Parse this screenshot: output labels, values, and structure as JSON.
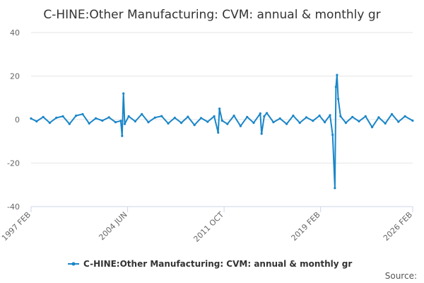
{
  "chart_data": {
    "type": "line",
    "title": "C-HINE:Other Manufacturing: CVM: annual & monthly gr",
    "xlabel": "",
    "ylabel": "",
    "ylim": [
      -40,
      40
    ],
    "yticks": [
      40,
      20,
      0,
      -20,
      -40
    ],
    "xlim": [
      1997.083,
      2026.083
    ],
    "xticks": [
      {
        "label": "1997 FEB",
        "value": 1997.083
      },
      {
        "label": "2004 JUN",
        "value": 2004.417
      },
      {
        "label": "2011 OCT",
        "value": 2011.75
      },
      {
        "label": "2019 FEB",
        "value": 2019.083
      },
      {
        "label": "2026 FEB",
        "value": 2026.083
      }
    ],
    "color": "#1a86c8",
    "legend": "C-HINE:Other Manufacturing: CVM: annual & monthly gr",
    "series": [
      {
        "name": "C-HINE:Other Manufacturing: CVM: annual & monthly gr",
        "points": [
          [
            1997.08,
            0.5
          ],
          [
            1997.5,
            -0.8
          ],
          [
            1998.0,
            1.2
          ],
          [
            1998.5,
            -1.5
          ],
          [
            1999.0,
            0.8
          ],
          [
            1999.5,
            1.5
          ],
          [
            2000.0,
            -2.0
          ],
          [
            2000.5,
            1.8
          ],
          [
            2001.0,
            2.5
          ],
          [
            2001.5,
            -1.8
          ],
          [
            2002.0,
            0.6
          ],
          [
            2002.5,
            -0.5
          ],
          [
            2003.0,
            1.0
          ],
          [
            2003.5,
            -1.2
          ],
          [
            2003.9,
            -0.6
          ],
          [
            2004.0,
            -7.5
          ],
          [
            2004.1,
            12.0
          ],
          [
            2004.2,
            -2.0
          ],
          [
            2004.5,
            1.5
          ],
          [
            2005.0,
            -0.8
          ],
          [
            2005.5,
            2.5
          ],
          [
            2006.0,
            -1.2
          ],
          [
            2006.5,
            0.9
          ],
          [
            2007.0,
            1.6
          ],
          [
            2007.5,
            -1.8
          ],
          [
            2008.0,
            0.8
          ],
          [
            2008.5,
            -1.5
          ],
          [
            2009.0,
            1.3
          ],
          [
            2009.5,
            -2.5
          ],
          [
            2010.0,
            0.7
          ],
          [
            2010.5,
            -1.0
          ],
          [
            2011.0,
            1.5
          ],
          [
            2011.3,
            -6.0
          ],
          [
            2011.4,
            5.0
          ],
          [
            2011.6,
            -0.5
          ],
          [
            2012.0,
            -2.0
          ],
          [
            2012.5,
            1.8
          ],
          [
            2013.0,
            -3.0
          ],
          [
            2013.5,
            1.2
          ],
          [
            2014.0,
            -1.5
          ],
          [
            2014.5,
            2.8
          ],
          [
            2014.6,
            -6.5
          ],
          [
            2014.8,
            1.5
          ],
          [
            2015.0,
            3.0
          ],
          [
            2015.5,
            -1.2
          ],
          [
            2016.0,
            0.5
          ],
          [
            2016.5,
            -2.0
          ],
          [
            2017.0,
            1.8
          ],
          [
            2017.5,
            -1.5
          ],
          [
            2018.0,
            1.0
          ],
          [
            2018.5,
            -0.6
          ],
          [
            2019.0,
            1.8
          ],
          [
            2019.4,
            -1.2
          ],
          [
            2019.8,
            2.0
          ],
          [
            2020.0,
            -7.0
          ],
          [
            2020.17,
            -31.5
          ],
          [
            2020.25,
            15.0
          ],
          [
            2020.33,
            20.5
          ],
          [
            2020.42,
            9.5
          ],
          [
            2020.6,
            1.5
          ],
          [
            2021.0,
            -1.5
          ],
          [
            2021.5,
            1.2
          ],
          [
            2022.0,
            -0.8
          ],
          [
            2022.5,
            1.5
          ],
          [
            2023.0,
            -3.5
          ],
          [
            2023.5,
            1.0
          ],
          [
            2024.0,
            -1.8
          ],
          [
            2024.5,
            2.5
          ],
          [
            2025.0,
            -1.0
          ],
          [
            2025.5,
            1.5
          ],
          [
            2026.08,
            -0.5
          ]
        ]
      }
    ],
    "credits": "Source:"
  }
}
